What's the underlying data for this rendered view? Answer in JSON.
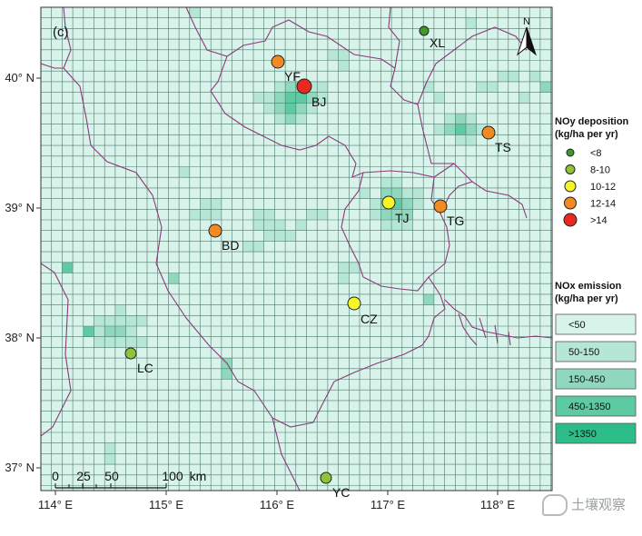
{
  "panel_label": "(c)",
  "north_label": "N",
  "y_axis_labels": [
    "40° N",
    "39° N",
    "38° N",
    "37° N"
  ],
  "x_axis_labels": [
    "114° E",
    "115° E",
    "116° E",
    "117° E",
    "118° E"
  ],
  "scale_bar": {
    "ticks": [
      "0",
      "25",
      "50",
      "100"
    ],
    "unit": "km"
  },
  "deposition_legend": {
    "title_line1": "NOy deposition",
    "title_line2": "(kg/ha per yr)",
    "items": [
      {
        "label": "<8",
        "color": "#3f9a2a"
      },
      {
        "label": "8-10",
        "color": "#8fc33a"
      },
      {
        "label": "10-12",
        "color": "#f5f52a"
      },
      {
        "label": "12-14",
        "color": "#f08a24"
      },
      {
        "label": ">14",
        "color": "#e82a1e"
      }
    ]
  },
  "emission_legend": {
    "title_line1": "NOx emission",
    "title_line2": "(kg/ha per yr)",
    "items": [
      {
        "label": "<50",
        "color": "#d8f3ea"
      },
      {
        "label": "50-150",
        "color": "#b6e6d5"
      },
      {
        "label": "150-450",
        "color": "#8fd8bd"
      },
      {
        "label": "450-1350",
        "color": "#5ecaa1"
      },
      {
        "label": ">1350",
        "color": "#2dbd88"
      }
    ]
  },
  "sites": [
    {
      "name": "XL",
      "class": 0
    },
    {
      "name": "YF",
      "class": 3
    },
    {
      "name": "BJ",
      "class": 4
    },
    {
      "name": "TS",
      "class": 3
    },
    {
      "name": "TJ",
      "class": 2
    },
    {
      "name": "TG",
      "class": 3
    },
    {
      "name": "BD",
      "class": 3
    },
    {
      "name": "CZ",
      "class": 2
    },
    {
      "name": "LC",
      "class": 1
    },
    {
      "name": "YC",
      "class": 1
    }
  ],
  "watermark": "土壤观察"
}
